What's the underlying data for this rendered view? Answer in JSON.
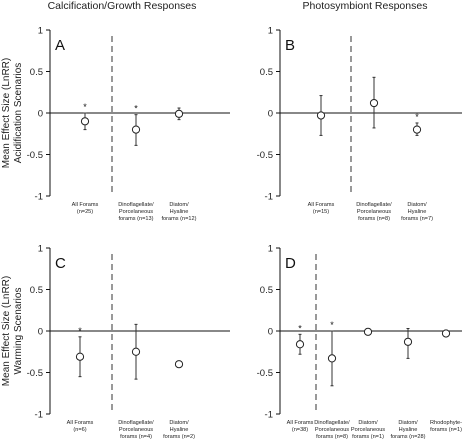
{
  "figure": {
    "column_titles": [
      "Calcification/Growth Responses",
      "Photosymbiont Responses"
    ],
    "y_axis_label_1": "Mean Effect Size (LnRR)",
    "y_axis_label_2": [
      "Acidification Scenarios",
      "Warming Scenarios"
    ]
  },
  "chart_data": [
    {
      "type": "scatter",
      "panel": "A",
      "ylim": [
        -1,
        1
      ],
      "yticks": [
        "1",
        "0.5",
        "0",
        "-0.5",
        "-1"
      ],
      "divider_after": 1,
      "categories": [
        [
          "All Forams",
          "(n=25)"
        ],
        [
          "Dinoflagellate/",
          "Porcelaneous",
          "forams (n=13)"
        ],
        [
          "Diatom/",
          "Hyaline",
          "forams (n=12)"
        ]
      ],
      "values": [
        -0.1,
        -0.2,
        -0.01
      ],
      "error_low": [
        -0.2,
        -0.39,
        -0.08
      ],
      "error_high": [
        0.0,
        -0.02,
        0.06
      ],
      "significant": [
        true,
        true,
        false
      ]
    },
    {
      "type": "scatter",
      "panel": "B",
      "ylim": [
        -1,
        1
      ],
      "yticks": [
        "1",
        "0.5",
        "0",
        "-0.5",
        "-1"
      ],
      "divider_after": 1,
      "categories": [
        [
          "All Forams",
          "(n=15)"
        ],
        [
          "Dinoflagellate/",
          "Porcelaneous",
          "forams (n=8)"
        ],
        [
          "Diatom/",
          "Hyaline",
          "forams (n=7)"
        ]
      ],
      "values": [
        -0.03,
        0.12,
        -0.2
      ],
      "error_low": [
        -0.27,
        -0.18,
        -0.27
      ],
      "error_high": [
        0.21,
        0.43,
        -0.12
      ],
      "significant": [
        false,
        false,
        true
      ]
    },
    {
      "type": "scatter",
      "panel": "C",
      "ylim": [
        -1,
        1
      ],
      "yticks": [
        "1",
        "0.5",
        "0",
        "-0.5",
        "-1"
      ],
      "divider_after": 1,
      "categories": [
        [
          "All Forams",
          "(n=6)"
        ],
        [
          "Dinoflagellate/",
          "Porcelaneous",
          "forams (n=4)"
        ],
        [
          "Diatom/",
          "Hyaline",
          "forams (n=2)"
        ]
      ],
      "values": [
        -0.31,
        -0.25,
        -0.4
      ],
      "error_low": [
        -0.55,
        -0.58,
        -0.4
      ],
      "error_high": [
        -0.07,
        0.08,
        -0.4
      ],
      "significant": [
        true,
        false,
        false
      ]
    },
    {
      "type": "scatter",
      "panel": "D",
      "ylim": [
        -1,
        1
      ],
      "yticks": [
        "1",
        "0.5",
        "0",
        "-0.5",
        "-1"
      ],
      "divider_after": 0,
      "categories": [
        [
          "All Forams",
          "(n=38)"
        ],
        [
          "Dinoflagellate/",
          "Porcelaneous",
          "forams (n=8)"
        ],
        [
          "Diatom/",
          "Porcelaneous",
          "forams (n=1)"
        ],
        [
          "Diatom/",
          "Hyaline",
          "forams (n=28)"
        ],
        [
          "Rhodophyte-",
          "forams (n=1)"
        ]
      ],
      "values": [
        -0.16,
        -0.33,
        -0.01,
        -0.13,
        -0.03
      ],
      "error_low": [
        -0.28,
        -0.66,
        -0.01,
        -0.33,
        -0.03
      ],
      "error_high": [
        -0.04,
        0.0,
        -0.01,
        0.03,
        -0.03
      ],
      "significant": [
        true,
        true,
        false,
        false,
        false
      ]
    }
  ]
}
